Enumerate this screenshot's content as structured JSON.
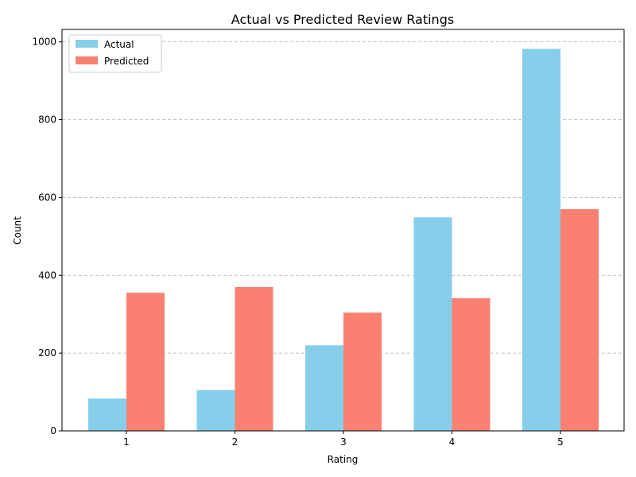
{
  "chart_data": {
    "type": "bar",
    "title": "Actual vs Predicted Review Ratings",
    "xlabel": "Rating",
    "ylabel": "Count",
    "categories": [
      "1",
      "2",
      "3",
      "4",
      "5"
    ],
    "series": [
      {
        "name": "Actual",
        "color": "#87CEEB",
        "values": [
          83,
          105,
          220,
          549,
          982
        ]
      },
      {
        "name": "Predicted",
        "color": "#FA8072",
        "values": [
          355,
          370,
          304,
          341,
          570
        ]
      }
    ],
    "ylim": [
      0,
      1032
    ],
    "yticks": [
      0,
      200,
      400,
      600,
      800,
      1000
    ],
    "grid": "y-dashed",
    "legend_position": "top-left"
  }
}
